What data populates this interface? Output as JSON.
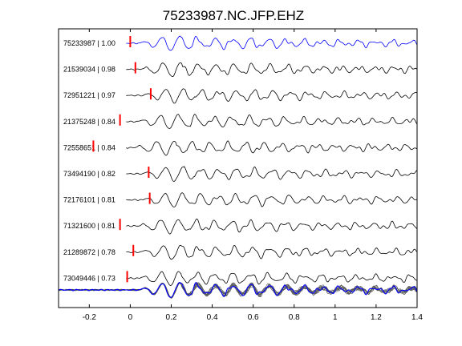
{
  "chart_data": {
    "type": "line",
    "title": "75233987.NC.JFP.EHZ",
    "xlabel": "",
    "ylabel": "",
    "xlim": [
      -0.35,
      1.4
    ],
    "xticks": [
      -0.2,
      0,
      0.2,
      0.4,
      0.6,
      0.8,
      1,
      1.2,
      1.4
    ],
    "xtick_labels": [
      "-0.2",
      "0",
      "0.2",
      "0.4",
      "0.6",
      "0.8",
      "1",
      "1.2",
      "1.4"
    ],
    "grid": false,
    "trace_color": "#000000",
    "reference_color": "#0000ff",
    "pick_marker_color": "#ff0000",
    "traces": [
      {
        "label": "75233987 | 1.00",
        "pick_time": 0.0,
        "color": "#0000ff"
      },
      {
        "label": "21539034 | 0.98",
        "pick_time": 0.025,
        "color": "#000000"
      },
      {
        "label": "72951221 | 0.97",
        "pick_time": 0.1,
        "color": "#000000"
      },
      {
        "label": "21375248 | 0.84",
        "pick_time": -0.05,
        "color": "#000000"
      },
      {
        "label": "72558651 | 0.84",
        "pick_time": -0.18,
        "color": "#000000"
      },
      {
        "label": "73494190 | 0.82",
        "pick_time": 0.09,
        "color": "#000000"
      },
      {
        "label": "72176101 | 0.81",
        "pick_time": 0.095,
        "color": "#000000"
      },
      {
        "label": "71321600 | 0.81",
        "pick_time": -0.05,
        "color": "#000000"
      },
      {
        "label": "21289872 | 0.78",
        "pick_time": 0.015,
        "color": "#000000"
      },
      {
        "label": "73049446 | 0.73",
        "pick_time": -0.015,
        "color": "#000000"
      }
    ],
    "stack_label": ""
  }
}
